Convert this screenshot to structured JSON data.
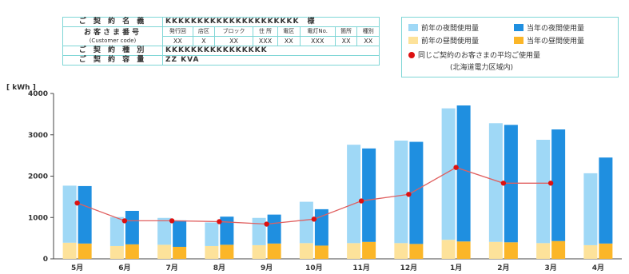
{
  "info": {
    "rows": [
      {
        "label": "ご 契 約 名 義",
        "value": "KKKKKKKKKKKKKKKKKKKKK　様"
      },
      {
        "label": "お客さま番号",
        "sublabel": "(Customer code)",
        "cols": [
          {
            "head": "発行回",
            "val": "XX"
          },
          {
            "head": "店区",
            "val": "X"
          },
          {
            "head": "ブロック",
            "val": "XX"
          },
          {
            "head": "住 所",
            "val": "XXX"
          },
          {
            "head": "電区",
            "val": "XX"
          },
          {
            "head": "電灯No.",
            "val": "XXX"
          },
          {
            "head": "箇所",
            "val": "XX"
          },
          {
            "head": "種別",
            "val": "XX"
          }
        ]
      },
      {
        "label": "ご 契 約 種 別",
        "value": "KKKKKKKKKKKKKKKK"
      },
      {
        "label": "ご 契 約 容 量",
        "value": "ZZ KVA"
      }
    ]
  },
  "legend": {
    "prev_night": "前年の夜間使用量",
    "curr_night": "当年の夜間使用量",
    "prev_day": "前年の昼間使用量",
    "curr_day": "当年の昼間使用量",
    "avg_line": "同じご契約のお客さまの平均ご使用量",
    "avg_line_note": "(北海道電力区域内)"
  },
  "colors": {
    "prev_night": "#9fd8f6",
    "curr_night": "#1f8fe0",
    "prev_day": "#fde29a",
    "curr_day": "#fbb628",
    "avg_line": "#e06060",
    "avg_marker": "#dd1111",
    "border": "#7fd6d6"
  },
  "chart_data": {
    "type": "bar",
    "ylabel": "[ kWh ]",
    "ylim": [
      0,
      4000
    ],
    "yticks": [
      0,
      1000,
      2000,
      3000,
      4000
    ],
    "categories": [
      "5月",
      "6月",
      "7月",
      "8月",
      "9月",
      "10月",
      "11月",
      "12月",
      "1月",
      "2月",
      "3月",
      "4月"
    ],
    "series": [
      {
        "name": "前年の夜間使用量",
        "stack": "prev",
        "values": [
          1380,
          700,
          650,
          570,
          660,
          1000,
          2380,
          2480,
          3180,
          2870,
          2500,
          1740
        ]
      },
      {
        "name": "前年の昼間使用量",
        "stack": "prev",
        "values": [
          390,
          310,
          340,
          310,
          330,
          380,
          380,
          380,
          460,
          410,
          380,
          330
        ]
      },
      {
        "name": "当年の夜間使用量",
        "stack": "curr",
        "values": [
          1390,
          810,
          640,
          680,
          700,
          880,
          2260,
          2470,
          3290,
          2840,
          2700,
          2080
        ]
      },
      {
        "name": "当年の昼間使用量",
        "stack": "curr",
        "values": [
          370,
          350,
          290,
          340,
          370,
          320,
          410,
          360,
          420,
          400,
          430,
          370
        ]
      },
      {
        "name": "同じご契約のお客さまの平均ご使用量",
        "type": "line",
        "values": [
          1350,
          920,
          920,
          900,
          840,
          960,
          1400,
          1560,
          2210,
          1830,
          1830,
          null
        ]
      }
    ]
  }
}
